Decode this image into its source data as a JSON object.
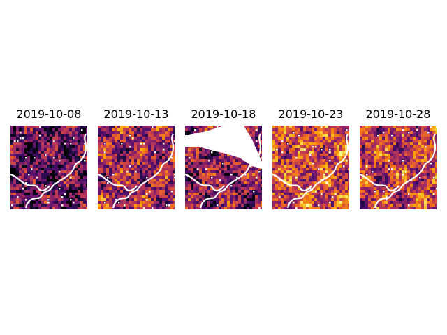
{
  "panels": [
    {
      "title": "2019-10-08",
      "seed": 11,
      "intensity": 0.28,
      "cloud": false
    },
    {
      "title": "2019-10-13",
      "seed": 23,
      "intensity": 0.44,
      "cloud": false
    },
    {
      "title": "2019-10-18",
      "seed": 37,
      "intensity": 0.36,
      "cloud": true
    },
    {
      "title": "2019-10-23",
      "seed": 41,
      "intensity": 0.56,
      "cloud": false
    },
    {
      "title": "2019-10-28",
      "seed": 59,
      "intensity": 0.52,
      "cloud": false
    }
  ],
  "colormap": "inferno"
}
